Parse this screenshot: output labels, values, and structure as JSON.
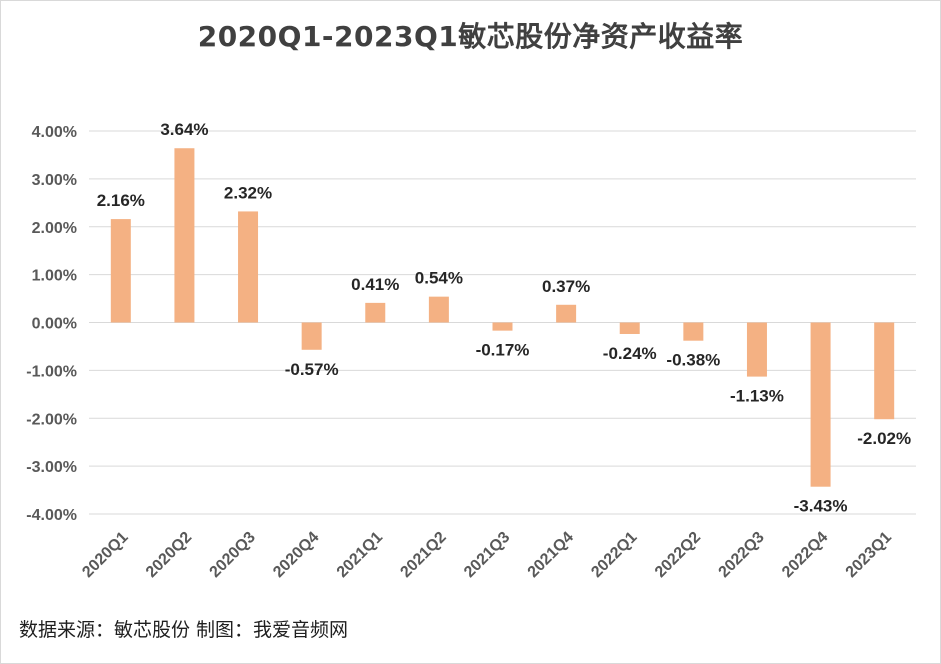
{
  "title": "2020Q1-2023Q1敏芯股份净资产收益率",
  "source_text": "数据来源：敏芯股份 制图：我爱音频网",
  "chart_data": {
    "type": "bar",
    "title": "2020Q1-2023Q1敏芯股份净资产收益率",
    "xlabel": "",
    "ylabel": "",
    "categories": [
      "2020Q1",
      "2020Q2",
      "2020Q3",
      "2020Q4",
      "2021Q1",
      "2021Q2",
      "2021Q3",
      "2021Q4",
      "2022Q1",
      "2022Q2",
      "2022Q3",
      "2022Q4",
      "2023Q1"
    ],
    "values": [
      2.16,
      3.64,
      2.32,
      -0.57,
      0.41,
      0.54,
      -0.17,
      0.37,
      -0.24,
      -0.38,
      -1.13,
      -3.43,
      -2.02
    ],
    "data_labels": [
      "2.16%",
      "3.64%",
      "2.32%",
      "-0.57%",
      "0.41%",
      "0.54%",
      "-0.17%",
      "0.37%",
      "-0.24%",
      "-0.38%",
      "-1.13%",
      "-3.43%",
      "-2.02%"
    ],
    "value_unit": "%",
    "ylim": [
      -4,
      4
    ],
    "y_ticks": [
      4,
      3,
      2,
      1,
      0,
      -1,
      -2,
      -3,
      -4
    ],
    "y_tick_labels": [
      "4.00%",
      "3.00%",
      "2.00%",
      "1.00%",
      "0.00%",
      "-1.00%",
      "-2.00%",
      "-3.00%",
      "-4.00%"
    ],
    "grid": true,
    "legend": "none",
    "colors": {
      "bar": "#F4B183",
      "grid": "#d9d9d9",
      "axis_text": "#595959",
      "label_text": "#262626"
    }
  }
}
